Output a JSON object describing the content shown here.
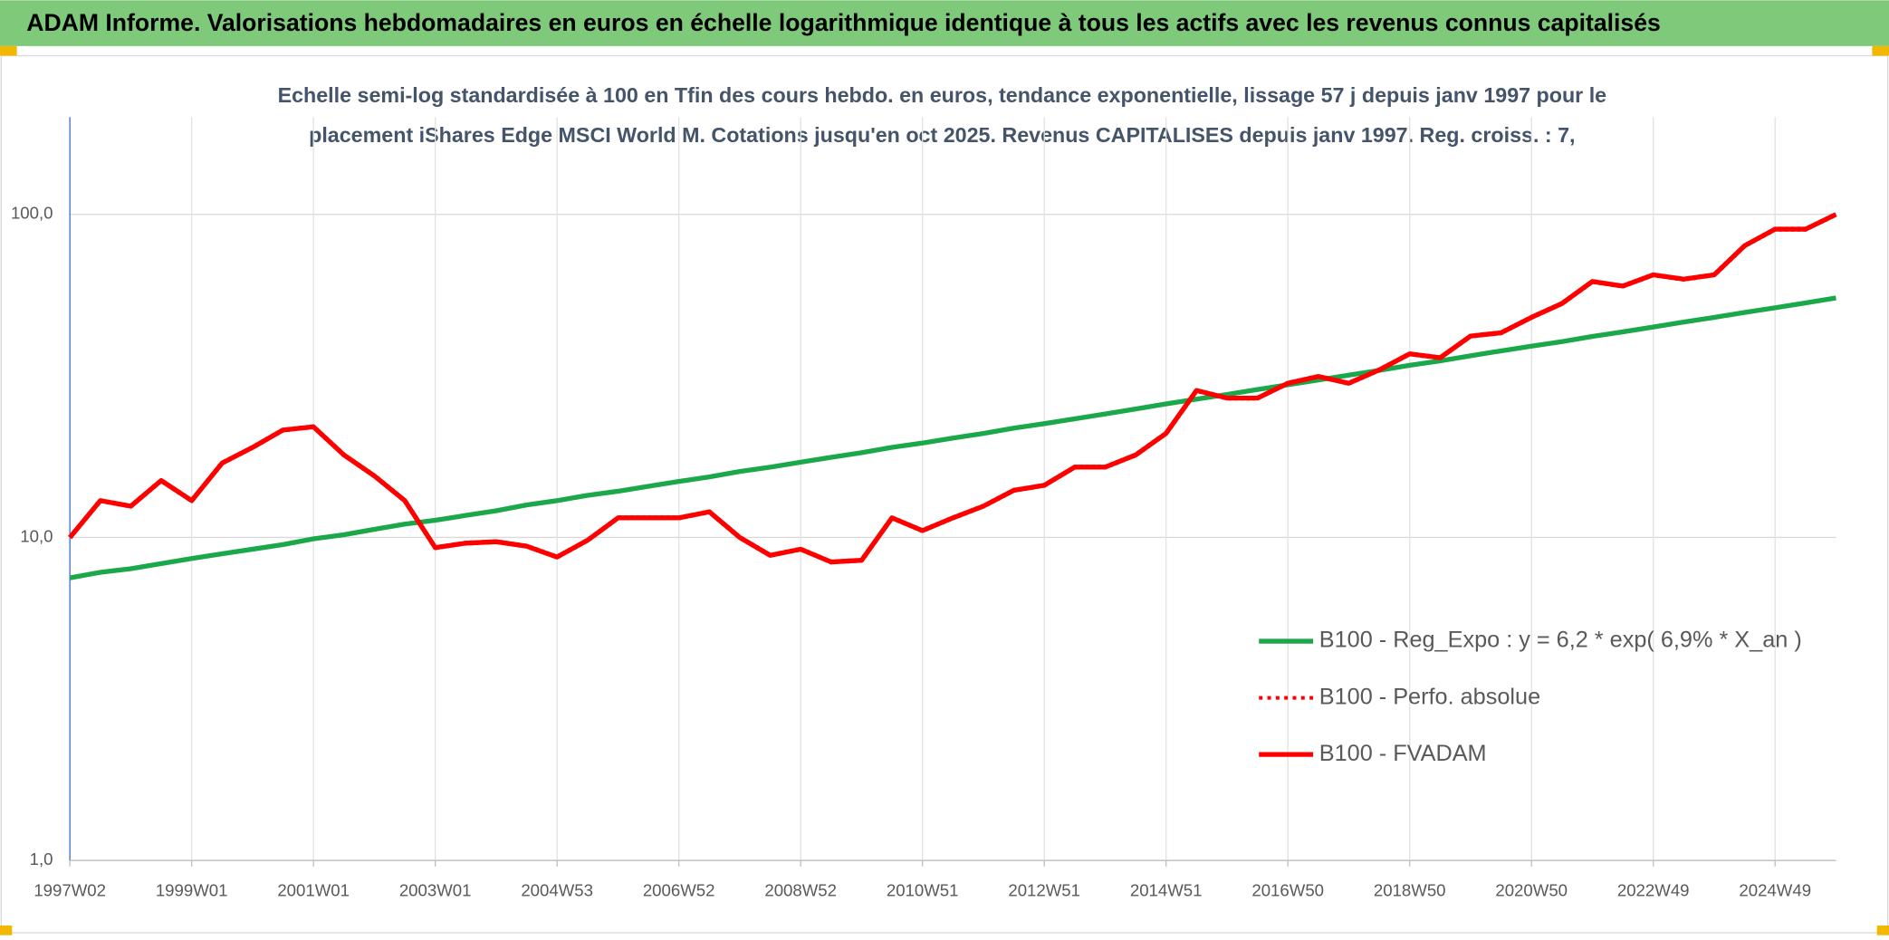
{
  "chart_data": {
    "type": "line",
    "title": "ADAM Informe. Valorisations hebdomadaires en euros en échelle logarithmique identique à tous les actifs avec les revenus connus capitalisés",
    "subtitle": [
      "Echelle semi-log standardisée à 100 en Tfin des cours hebdo. en euros, tendance exponentielle, lissage 57 j depuis janv 1997 pour le",
      "placement iShares Edge MSCI World M. Cotations jusqu'en oct 2025. Revenus CAPITALISES depuis janv 1997. Reg. croiss. : 7,"
    ],
    "categories": [
      "1997W02",
      null,
      null,
      null,
      "1999W01",
      null,
      null,
      null,
      "2001W01",
      null,
      null,
      null,
      "2003W01",
      null,
      null,
      null,
      "2004W53",
      null,
      null,
      null,
      "2006W52",
      null,
      null,
      null,
      "2008W52",
      null,
      null,
      null,
      "2010W51",
      null,
      null,
      null,
      "2012W51",
      null,
      null,
      null,
      "2014W51",
      null,
      null,
      null,
      "2016W50",
      null,
      null,
      null,
      "2018W50",
      null,
      null,
      null,
      "2020W50",
      null,
      null,
      null,
      "2022W49",
      null,
      null,
      null,
      "2024W49",
      null,
      null
    ],
    "series": [
      {
        "name": "B100 - Reg_Expo : y = 6,2 * exp( 6,9% *  X_an )",
        "color": "#1aa84a",
        "style": "solid",
        "values": [
          7.5,
          7.8,
          8.0,
          8.3,
          8.6,
          8.9,
          9.2,
          9.5,
          9.9,
          10.2,
          10.6,
          11.0,
          11.3,
          11.7,
          12.1,
          12.6,
          13.0,
          13.5,
          13.9,
          14.4,
          14.9,
          15.4,
          16.0,
          16.5,
          17.1,
          17.7,
          18.3,
          19.0,
          19.6,
          20.3,
          21.0,
          21.8,
          22.5,
          23.3,
          24.1,
          25.0,
          25.9,
          26.8,
          27.7,
          28.7,
          29.7,
          30.7,
          31.8,
          32.9,
          34.1,
          35.2,
          36.5,
          37.8,
          39.1,
          40.4,
          41.9,
          43.3,
          44.8,
          46.4,
          48.0,
          49.7,
          51.4,
          53.2,
          55.1
        ]
      },
      {
        "name": "B100 - Perfo. absolue",
        "color": "#ff0000",
        "style": "dotted",
        "values": [
          10,
          13,
          12.5,
          15,
          13,
          17,
          19,
          21.5,
          22,
          18,
          15.5,
          13,
          9.3,
          9.6,
          9.7,
          9.4,
          8.7,
          9.8,
          11.5,
          11.5,
          11.5,
          12,
          10,
          8.8,
          9.2,
          8.4,
          8.5,
          11.5,
          10.5,
          11.5,
          12.5,
          14,
          14.5,
          16.5,
          16.5,
          18,
          21,
          28.5,
          27,
          27,
          30,
          31.5,
          30,
          33,
          37,
          36,
          42,
          43,
          48,
          53,
          62,
          60,
          65,
          63,
          65,
          80,
          90,
          90,
          100
        ]
      },
      {
        "name": "B100 - FVADAM",
        "color": "#ff0000",
        "style": "solid",
        "values": [
          10,
          13,
          12.5,
          15,
          13,
          17,
          19,
          21.5,
          22,
          18,
          15.5,
          13,
          9.3,
          9.6,
          9.7,
          9.4,
          8.7,
          9.8,
          11.5,
          11.5,
          11.5,
          12,
          10,
          8.8,
          9.2,
          8.4,
          8.5,
          11.5,
          10.5,
          11.5,
          12.5,
          14,
          14.5,
          16.5,
          16.5,
          18,
          21,
          28.5,
          27,
          27,
          30,
          31.5,
          30,
          33,
          37,
          36,
          42,
          43,
          48,
          53,
          62,
          60,
          65,
          63,
          65,
          80,
          90,
          90,
          100
        ]
      }
    ],
    "ylim": [
      1,
      200
    ],
    "yticks": [
      {
        "value": 1,
        "label": "1,0"
      },
      {
        "value": 10,
        "label": "10,0"
      },
      {
        "value": 100,
        "label": "100,0"
      }
    ],
    "log_scale": true,
    "grid": true,
    "legend_position": "right"
  }
}
